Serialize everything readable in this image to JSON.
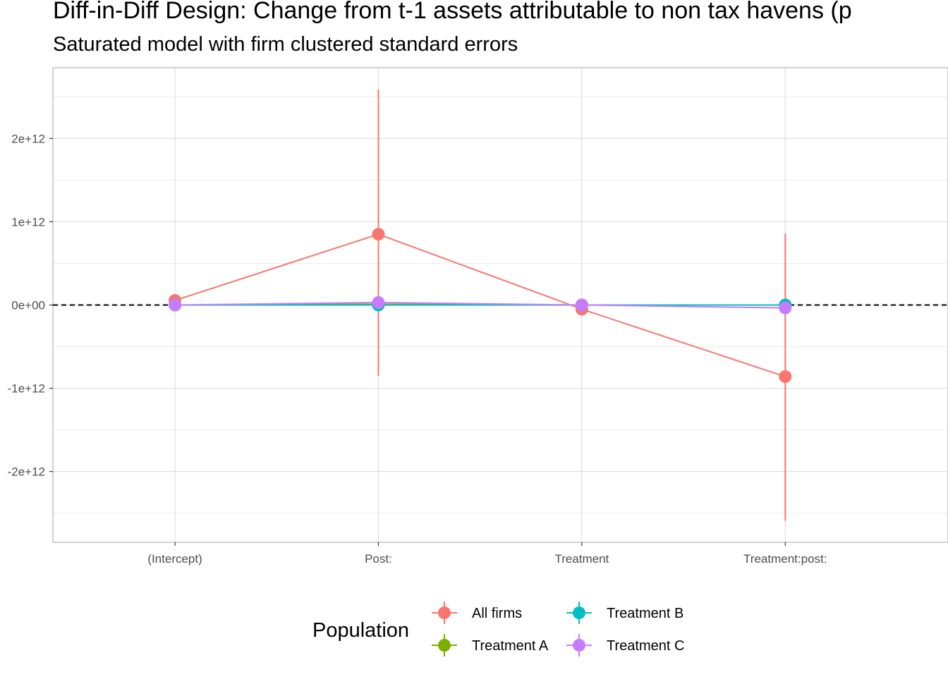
{
  "chart_data": {
    "type": "scatter",
    "title": "Diff-in-Diff Design: Change from t-1 assets attributable to non tax havens (p",
    "subtitle": "Saturated model with firm clustered standard errors",
    "xlabel": "",
    "ylabel": "",
    "categories": [
      "(Intercept)",
      "Post:",
      "Treatment",
      "Treatment:post:"
    ],
    "y_ticks": [
      -2000000000000.0,
      -1000000000000.0,
      0,
      1000000000000.0,
      2000000000000.0
    ],
    "y_tick_labels": [
      "-2e+12",
      "-1e+12",
      "0e+00",
      "1e+12",
      "2e+12"
    ],
    "ylim": [
      -2850000000000.0,
      2850000000000.0
    ],
    "reference_line": {
      "y": 0,
      "style": "dashed",
      "color": "#000000"
    },
    "grid": true,
    "legend": {
      "title": "Population",
      "position": "bottom"
    },
    "series": [
      {
        "name": "All firms",
        "color": "#F8766D",
        "values": [
          55000000000.0,
          850000000000.0,
          -50000000000.0,
          -860000000000.0
        ],
        "lower": [
          55000000000.0,
          -850000000000.0,
          -50000000000.0,
          -2590000000000.0
        ],
        "upper": [
          55000000000.0,
          2590000000000.0,
          -50000000000.0,
          860000000000.0
        ]
      },
      {
        "name": "Treatment A",
        "color": "#7CAE00",
        "values": [
          0,
          10000000000.0,
          0,
          0
        ],
        "lower": [
          0,
          10000000000.0,
          0,
          0
        ],
        "upper": [
          0,
          10000000000.0,
          0,
          0
        ]
      },
      {
        "name": "Treatment B",
        "color": "#00BFC4",
        "values": [
          0,
          0,
          0,
          0
        ],
        "lower": [
          0,
          0,
          0,
          0
        ],
        "upper": [
          0,
          0,
          0,
          0
        ]
      },
      {
        "name": "Treatment C",
        "color": "#C77CFF",
        "values": [
          0,
          30000000000.0,
          0,
          -35000000000.0
        ],
        "lower": [
          0,
          30000000000.0,
          0,
          -35000000000.0
        ],
        "upper": [
          0,
          30000000000.0,
          0,
          -35000000000.0
        ]
      }
    ]
  }
}
